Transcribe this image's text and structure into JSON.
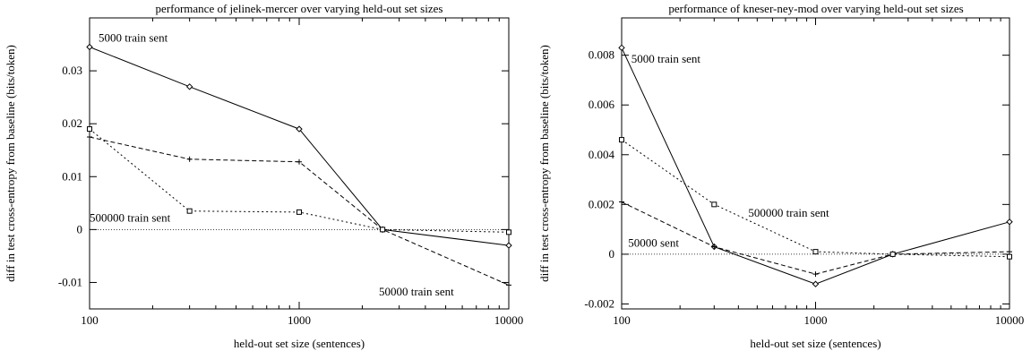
{
  "chart_data": [
    {
      "type": "line",
      "title": "performance of jelinek-mercer over varying held-out set sizes",
      "xlabel": "held-out set size (sentences)",
      "ylabel": "diff in test cross-entropy from baseline (bits/token)",
      "xscale": "log",
      "xlim": [
        100,
        10000
      ],
      "ylim": [
        -0.015,
        0.04
      ],
      "grid": false,
      "xticks": [
        100,
        1000,
        10000
      ],
      "xtick_labels": [
        "100",
        "1000",
        "10000"
      ],
      "yticks": [
        -0.01,
        0,
        0.01,
        0.02,
        0.03
      ],
      "ytick_labels": [
        "-0.01",
        "0",
        "0.01",
        "0.02",
        "0.03"
      ],
      "baseline": 0,
      "series": [
        {
          "values_x": [
            100,
            300,
            1000,
            2500,
            10000
          ],
          "values_y": [
            0.0345,
            0.027,
            0.019,
            0,
            -0.003
          ],
          "line": "solid",
          "marker": "diamond"
        },
        {
          "values_x": [
            100,
            300,
            1000,
            2500,
            10000
          ],
          "values_y": [
            0.0175,
            0.0133,
            0.0128,
            0,
            -0.0105
          ],
          "line": "dashed",
          "marker": "plus"
        },
        {
          "values_x": [
            100,
            300,
            1000,
            2500,
            10000
          ],
          "values_y": [
            0.019,
            0.0035,
            0.0033,
            0,
            -0.0005
          ],
          "line": "dotted",
          "marker": "square"
        }
      ],
      "annotations": [
        {
          "text": "5000 train sent",
          "x": 100,
          "y": 0.0355
        },
        {
          "text": "500000 train sent",
          "x": 100,
          "y": 0.0015
        },
        {
          "text": "50000 train sent",
          "x": 2400,
          "y": -0.0125
        }
      ]
    },
    {
      "type": "line",
      "title": "performance of kneser-ney-mod over varying held-out set sizes",
      "xlabel": "held-out set size (sentences)",
      "ylabel": "diff in test cross-entropy from baseline (bits/token)",
      "xscale": "log",
      "xlim": [
        100,
        10000
      ],
      "ylim": [
        -0.0022,
        0.0095
      ],
      "grid": false,
      "xticks": [
        100,
        1000,
        10000
      ],
      "xtick_labels": [
        "100",
        "1000",
        "10000"
      ],
      "yticks": [
        -0.002,
        0,
        0.002,
        0.004,
        0.006,
        0.008
      ],
      "ytick_labels": [
        "-0.002",
        "0",
        "0.002",
        "0.004",
        "0.006",
        "0.008"
      ],
      "baseline": 0,
      "series": [
        {
          "values_x": [
            100,
            300,
            1000,
            2500,
            10000
          ],
          "values_y": [
            0.0083,
            0.0003,
            -0.0012,
            0,
            0.0013
          ],
          "line": "solid",
          "marker": "diamond"
        },
        {
          "values_x": [
            100,
            300,
            1000,
            2500,
            10000
          ],
          "values_y": [
            0.0021,
            0.0003,
            -0.0008,
            0,
            0.0001
          ],
          "line": "dashed",
          "marker": "plus"
        },
        {
          "values_x": [
            100,
            300,
            1000,
            2500,
            10000
          ],
          "values_y": [
            0.0046,
            0.002,
            0.0001,
            0,
            -0.0001
          ],
          "line": "dotted",
          "marker": "square"
        }
      ],
      "annotations": [
        {
          "text": "5000 train sent",
          "x": 103,
          "y": 0.0077
        },
        {
          "text": "500000 train sent",
          "x": 450,
          "y": 0.0015
        },
        {
          "text": "50000 sent",
          "x": 108,
          "y": 0.0003
        }
      ]
    }
  ]
}
